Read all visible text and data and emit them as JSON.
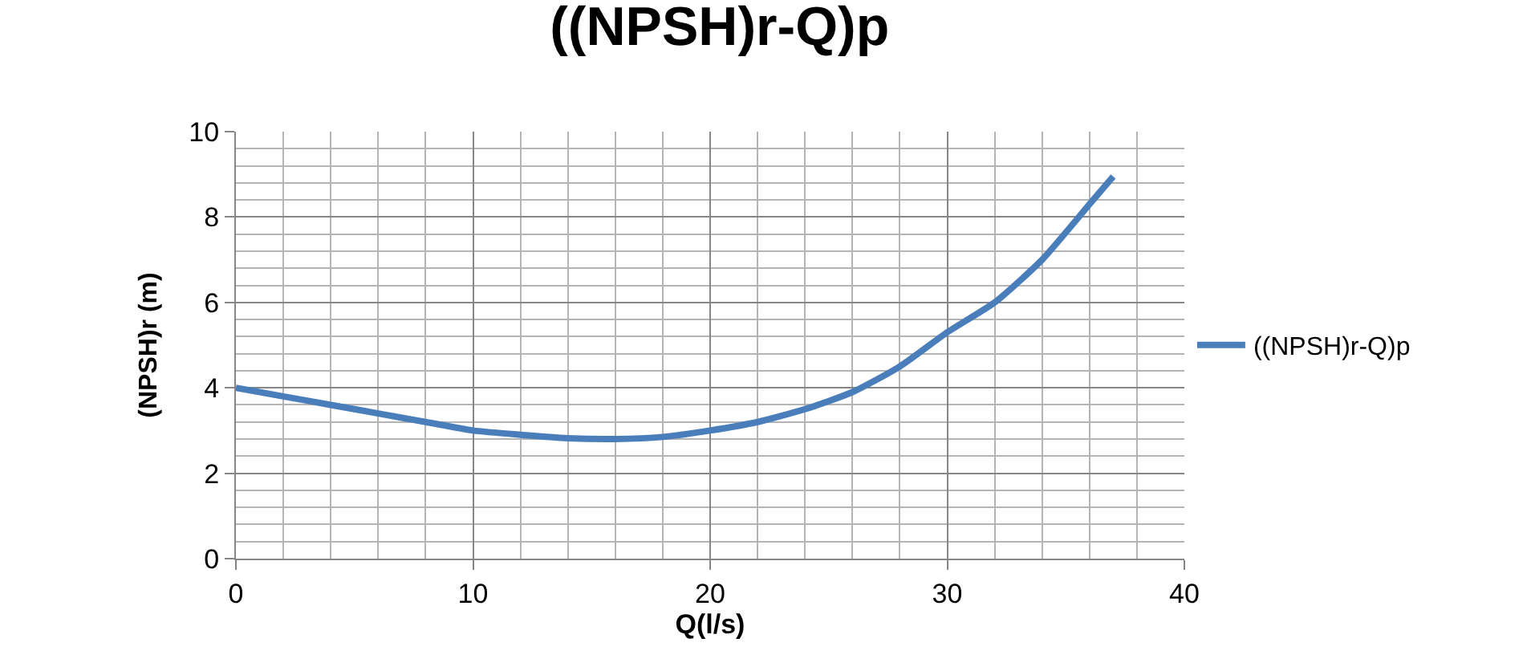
{
  "chart_data": {
    "type": "line",
    "title": "((NPSH)r-Q)p",
    "xlabel": "Q(l/s)",
    "ylabel": "(NPSH)r (m)",
    "x": [
      0,
      2,
      4,
      6,
      8,
      10,
      12,
      14,
      16,
      18,
      20,
      22,
      24,
      26,
      28,
      30,
      32,
      34,
      36,
      37
    ],
    "series": [
      {
        "name": "((NPSH)r-Q)p",
        "color": "#4a7ebb",
        "values": [
          4.0,
          3.8,
          3.6,
          3.4,
          3.2,
          3.0,
          2.9,
          2.82,
          2.8,
          2.85,
          3.0,
          3.2,
          3.5,
          3.9,
          4.5,
          5.3,
          6.0,
          7.0,
          8.3,
          8.95
        ]
      }
    ],
    "xlim": [
      0,
      40
    ],
    "xticks": [
      0,
      10,
      20,
      30,
      40
    ],
    "ylim": [
      0,
      10
    ],
    "yticks": [
      0,
      2,
      4,
      6,
      8,
      10
    ],
    "grid": true,
    "legend": "right",
    "marker": "none",
    "line_style": "solid"
  }
}
